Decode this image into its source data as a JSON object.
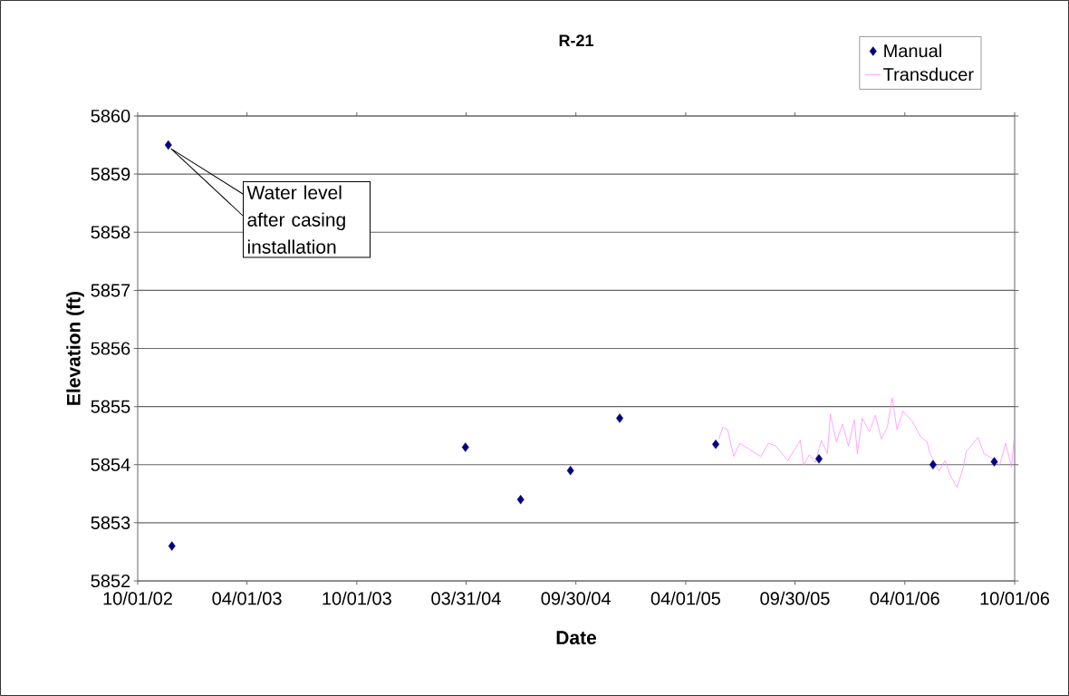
{
  "chart_data": {
    "type": "scatter",
    "title": "R-21",
    "xlabel": "Date",
    "ylabel": "Elevation (ft)",
    "xlim": [
      "2002-10-01",
      "2006-10-01"
    ],
    "xticks": [
      {
        "value": "2002-10-01",
        "label": "10/01/02"
      },
      {
        "value": "2003-04-01",
        "label": "04/01/03"
      },
      {
        "value": "2003-10-01",
        "label": "10/01/03"
      },
      {
        "value": "2004-03-31",
        "label": "03/31/04"
      },
      {
        "value": "2004-09-30",
        "label": "09/30/04"
      },
      {
        "value": "2005-04-01",
        "label": "04/01/05"
      },
      {
        "value": "2005-09-30",
        "label": "09/30/05"
      },
      {
        "value": "2006-04-01",
        "label": "04/01/06"
      },
      {
        "value": "2006-10-01",
        "label": "10/01/06"
      }
    ],
    "ylim": [
      5852,
      5860
    ],
    "yticks": [
      5852,
      5853,
      5854,
      5855,
      5856,
      5857,
      5858,
      5859,
      5860
    ],
    "grid": "y",
    "legend": "top right",
    "series": [
      {
        "name": "Manual",
        "marker": "diamond",
        "color": "#000080",
        "x": [
          "2002-11-21",
          "2002-11-27",
          "2004-03-30",
          "2004-06-30",
          "2004-09-21",
          "2004-12-12",
          "2005-05-21",
          "2005-11-09",
          "2006-05-18",
          "2006-08-28"
        ],
        "values": [
          5859.5,
          5852.6,
          5854.3,
          5853.4,
          5853.9,
          5854.8,
          5854.35,
          5854.1,
          5854.0,
          5854.05
        ]
      },
      {
        "name": "Transducer",
        "type": "line",
        "marker": "none",
        "line_style": "solid",
        "color": "#ff80ff",
        "x": [
          "2005-05-26",
          "2005-06-02",
          "2005-06-10",
          "2005-06-20",
          "2005-06-30",
          "2005-07-15",
          "2005-08-04",
          "2005-08-17",
          "2005-08-29",
          "2005-09-18",
          "2005-10-09",
          "2005-10-14",
          "2005-10-24",
          "2005-11-03",
          "2005-11-13",
          "2005-11-23",
          "2005-11-28",
          "2005-12-08",
          "2005-12-18",
          "2005-12-28",
          "2006-01-07",
          "2006-01-12",
          "2006-01-20",
          "2006-02-01",
          "2006-02-11",
          "2006-02-21",
          "2006-03-03",
          "2006-03-11",
          "2006-03-19",
          "2006-03-29",
          "2006-04-13",
          "2006-04-28",
          "2006-05-08",
          "2006-05-13",
          "2006-05-28",
          "2006-06-07",
          "2006-06-17",
          "2006-06-27",
          "2006-07-07",
          "2006-07-12",
          "2006-08-01",
          "2006-08-11",
          "2006-08-27",
          "2006-09-06",
          "2006-09-16",
          "2006-09-26",
          "2006-09-30"
        ],
        "values": [
          5854.44,
          5854.65,
          5854.6,
          5854.14,
          5854.37,
          5854.27,
          5854.14,
          5854.37,
          5854.32,
          5854.07,
          5854.42,
          5853.99,
          5854.17,
          5854.04,
          5854.42,
          5854.19,
          5854.87,
          5854.39,
          5854.7,
          5854.32,
          5854.77,
          5854.19,
          5854.8,
          5854.57,
          5854.85,
          5854.44,
          5854.65,
          5855.15,
          5854.6,
          5854.92,
          5854.75,
          5854.47,
          5854.39,
          5854.19,
          5853.89,
          5854.07,
          5853.79,
          5853.61,
          5853.94,
          5854.22,
          5854.47,
          5854.19,
          5854.09,
          5853.99,
          5854.37,
          5853.96,
          5854.45
        ]
      }
    ],
    "annotations": [
      {
        "text": "Water level after casing installation",
        "x": "2002-11-21",
        "y": 5859.5
      }
    ]
  }
}
